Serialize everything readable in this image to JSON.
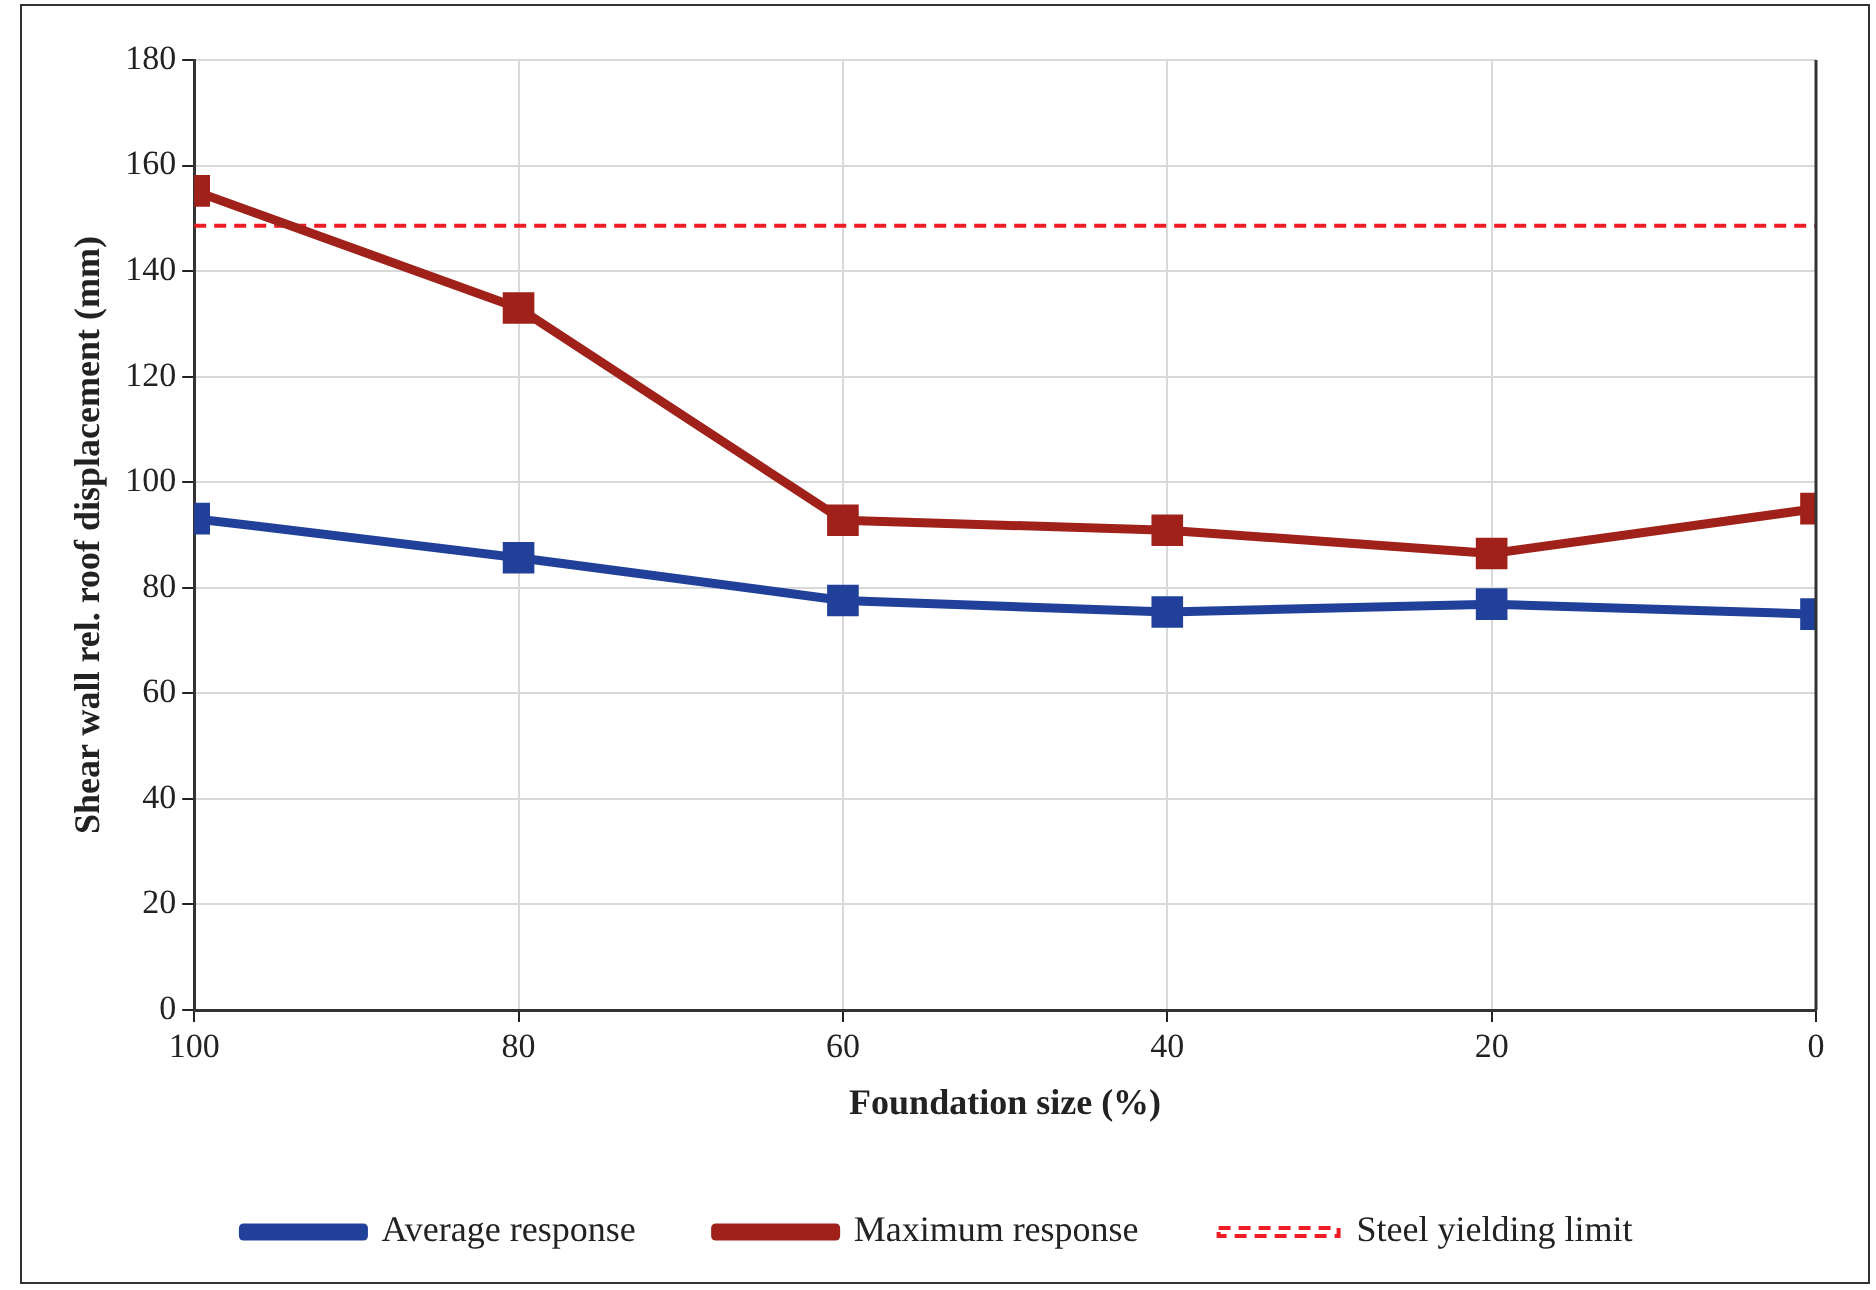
{
  "chart_data": {
    "type": "line",
    "xlabel": "Foundation size (%)",
    "ylabel": "Shear wall rel. roof displacement (mm)",
    "x": [
      100,
      80,
      60,
      40,
      20,
      0
    ],
    "series": [
      {
        "name": "Average response",
        "color": "#21409a",
        "values": [
          93.1,
          85.7,
          77.6,
          75.4,
          76.9,
          75.0
        ]
      },
      {
        "name": "Maximum response",
        "color": "#a0211a",
        "values": [
          155.2,
          133.0,
          92.8,
          90.9,
          86.5,
          95.0
        ]
      }
    ],
    "ref_lines": [
      {
        "axis": "y",
        "value": 148.6,
        "label": "Steel yielding limit",
        "color": "#ee1c25",
        "line_style": "dashed"
      }
    ],
    "xlim": [
      100,
      0
    ],
    "xticks": [
      100,
      80,
      60,
      40,
      20,
      0
    ],
    "ylim": [
      0,
      180
    ],
    "yticks": [
      0,
      20,
      40,
      60,
      80,
      100,
      120,
      140,
      160,
      180
    ],
    "grid": true,
    "legend": "bottom",
    "marker": "square",
    "line_style": "solid"
  }
}
